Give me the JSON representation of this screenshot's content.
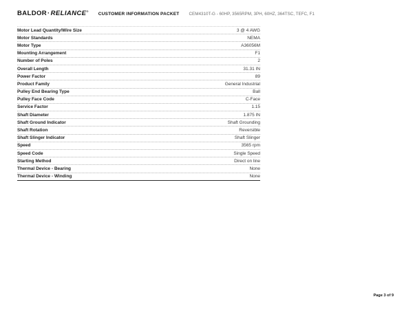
{
  "header": {
    "logo": {
      "brand_left": "BALDOR",
      "separator": "·",
      "brand_right": "RELIANCE",
      "trademark": "®"
    },
    "document_title": "CUSTOMER INFORMATION PACKET",
    "product_spec": "CEM4310T-G - 60HP, 3565RPM, 3PH, 60HZ, 364TSC, TEFC, F1"
  },
  "spec_table": {
    "rows": [
      {
        "label": "Motor Lead Quantity/Wire Size",
        "value": "3 @ 4 AWG"
      },
      {
        "label": "Motor Standards",
        "value": "NEMA"
      },
      {
        "label": "Motor Type",
        "value": "A36056M"
      },
      {
        "label": "Mounting Arrangement",
        "value": "F1"
      },
      {
        "label": "Number of Poles",
        "value": "2"
      },
      {
        "label": "Overall Length",
        "value": "31.31 IN"
      },
      {
        "label": "Power Factor",
        "value": "89"
      },
      {
        "label": "Product Family",
        "value": "General Industrial"
      },
      {
        "label": "Pulley End Bearing Type",
        "value": "Ball"
      },
      {
        "label": "Pulley Face Code",
        "value": "C-Face"
      },
      {
        "label": "Service Factor",
        "value": "1.15"
      },
      {
        "label": "Shaft Diameter",
        "value": "1.875 IN"
      },
      {
        "label": "Shaft Ground Indicator",
        "value": "Shaft Grounding"
      },
      {
        "label": "Shaft Rotation",
        "value": "Reversible"
      },
      {
        "label": "Shaft Slinger Indicator",
        "value": "Shaft Slinger"
      },
      {
        "label": "Speed",
        "value": "3565 rpm"
      },
      {
        "label": "Speed Code",
        "value": "Single Speed"
      },
      {
        "label": "Starting Method",
        "value": "Direct on line"
      },
      {
        "label": "Thermal Device - Bearing",
        "value": "None"
      },
      {
        "label": "Thermal Device - Winding",
        "value": "None"
      }
    ]
  },
  "footer": {
    "page_indicator": "Page 3 of 9"
  },
  "colors": {
    "text": "#1f1f1f",
    "muted_text": "#6e6e6e",
    "row_border": "#b5b5b5",
    "table_bottom_border": "#2b2b2b"
  }
}
